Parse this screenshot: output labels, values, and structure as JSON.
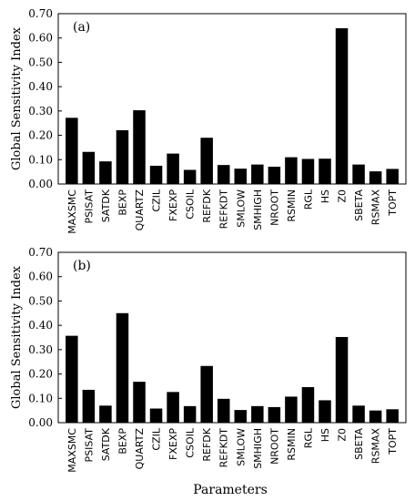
{
  "ylabel": "Global Sensitivity Index",
  "xlabel": "Parameters",
  "chart_data": [
    {
      "type": "bar",
      "panel_label": "(a)",
      "categories": [
        "MAXSMC",
        "PSISAT",
        "SATDK",
        "BEXP",
        "QUARTZ",
        "CZIL",
        "FXEXP",
        "CSOIL",
        "REFDK",
        "REFKDT",
        "SMLOW",
        "SMHIGH",
        "NROOT",
        "RSMIN",
        "RGL",
        "HS",
        "Z0",
        "SBETA",
        "RSMAX",
        "TOPT"
      ],
      "values": [
        0.272,
        0.132,
        0.093,
        0.221,
        0.303,
        0.075,
        0.125,
        0.058,
        0.19,
        0.078,
        0.063,
        0.08,
        0.071,
        0.11,
        0.103,
        0.104,
        0.64,
        0.08,
        0.052,
        0.062
      ],
      "yticks": [
        "0.00",
        "0.10",
        "0.20",
        "0.30",
        "0.40",
        "0.50",
        "0.60",
        "0.70"
      ],
      "ylim": [
        0,
        0.7
      ],
      "ylabel": "Global Sensitivity Index",
      "xlabel": ""
    },
    {
      "type": "bar",
      "panel_label": "(b)",
      "categories": [
        "MAXSMC",
        "PSISAT",
        "SATDK",
        "BEXP",
        "QUARTZ",
        "CZIL",
        "FXEXP",
        "CSOIL",
        "REFDK",
        "REFKDT",
        "SMLOW",
        "SMHIGH",
        "NROOT",
        "RSMIN",
        "RGL",
        "HS",
        "Z0",
        "SBETA",
        "RSMAX",
        "TOPT"
      ],
      "values": [
        0.357,
        0.135,
        0.07,
        0.45,
        0.168,
        0.058,
        0.126,
        0.068,
        0.233,
        0.098,
        0.052,
        0.068,
        0.064,
        0.107,
        0.146,
        0.092,
        0.352,
        0.07,
        0.05,
        0.055
      ],
      "yticks": [
        "0.00",
        "0.10",
        "0.20",
        "0.30",
        "0.40",
        "0.50",
        "0.60",
        "0.70"
      ],
      "ylim": [
        0,
        0.7
      ],
      "ylabel": "Global Sensitivity Index",
      "xlabel": "Parameters"
    }
  ]
}
